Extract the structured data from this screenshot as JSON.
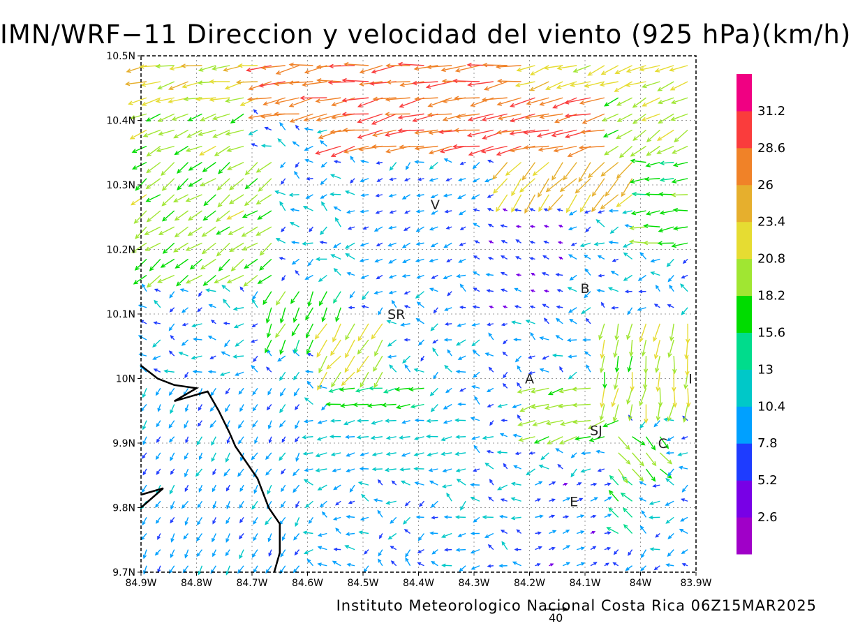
{
  "title": "IMN/WRF−11 Direccion y velocidad del viento (925 hPa)(km/h)",
  "footer": "Instituto Meteorologico Nacional Costa Rica 06Z15MAR2025",
  "reference_vector": {
    "label": "40"
  },
  "map": {
    "lon_range": [
      -84.9,
      -83.9
    ],
    "lat_range": [
      9.7,
      10.5
    ],
    "lon_ticks": [
      "84.9W",
      "84.8W",
      "84.7W",
      "84.6W",
      "84.5W",
      "84.4W",
      "84.3W",
      "84.2W",
      "84.1W",
      "84W",
      "83.9W"
    ],
    "lat_ticks": [
      "9.7N",
      "9.8N",
      "9.9N",
      "10N",
      "10.1N",
      "10.2N",
      "10.3N",
      "10.4N",
      "10.5N"
    ],
    "grid": "dotted",
    "places": [
      {
        "label": "V",
        "lon": -84.37,
        "lat": 10.27
      },
      {
        "label": "B",
        "lon": -84.1,
        "lat": 10.14
      },
      {
        "label": "SR",
        "lon": -84.44,
        "lat": 10.1
      },
      {
        "label": "A",
        "lon": -84.2,
        "lat": 10.0
      },
      {
        "label": "I",
        "lon": -83.91,
        "lat": 10.0
      },
      {
        "label": "SJ",
        "lon": -84.08,
        "lat": 9.92
      },
      {
        "label": "C",
        "lon": -83.96,
        "lat": 9.9
      },
      {
        "label": "E",
        "lon": -84.12,
        "lat": 9.81
      }
    ],
    "coastline": [
      [
        -84.9,
        10.02
      ],
      [
        -84.87,
        10.0
      ],
      [
        -84.84,
        9.99
      ],
      [
        -84.8,
        9.985
      ],
      [
        -84.84,
        9.965
      ],
      [
        -84.78,
        9.98
      ],
      [
        -84.76,
        9.95
      ],
      [
        -84.74,
        9.915
      ],
      [
        -84.73,
        9.895
      ],
      [
        -84.71,
        9.87
      ],
      [
        -84.69,
        9.845
      ],
      [
        -84.67,
        9.8
      ],
      [
        -84.65,
        9.775
      ],
      [
        -84.65,
        9.73
      ],
      [
        -84.66,
        9.7
      ]
    ],
    "coastline2": [
      [
        -84.9,
        9.82
      ],
      [
        -84.86,
        9.83
      ],
      [
        -84.9,
        9.8
      ]
    ]
  },
  "colorbar": {
    "labels": [
      "2.6",
      "5.2",
      "7.8",
      "10.4",
      "13",
      "15.6",
      "18.2",
      "20.8",
      "23.4",
      "26",
      "28.6",
      "31.2"
    ],
    "colors": [
      "#a000c8",
      "#7800e6",
      "#1e3cff",
      "#00a0ff",
      "#00c8c8",
      "#00dc8c",
      "#00dc00",
      "#a0e632",
      "#e6dc32",
      "#e6af2d",
      "#f08228",
      "#fa3c3c",
      "#f00082"
    ]
  },
  "wind_regions": [
    {
      "lon": [
        -84.9,
        -84.67
      ],
      "lat": [
        10.42,
        10.5
      ],
      "spd": 22,
      "dir": 192
    },
    {
      "lon": [
        -84.67,
        -84.2
      ],
      "lat": [
        10.4,
        10.5
      ],
      "spd": 28,
      "dir": 188
    },
    {
      "lon": [
        -84.2,
        -83.9
      ],
      "lat": [
        10.44,
        10.5
      ],
      "spd": 22,
      "dir": 200
    },
    {
      "lon": [
        -84.55,
        -84.05
      ],
      "lat": [
        10.36,
        10.44
      ],
      "spd": 28,
      "dir": 192
    },
    {
      "lon": [
        -84.05,
        -83.9
      ],
      "lat": [
        10.36,
        10.44
      ],
      "spd": 20,
      "dir": 210
    },
    {
      "lon": [
        -84.25,
        -84.0
      ],
      "lat": [
        10.28,
        10.36
      ],
      "spd": 24,
      "dir": 230
    },
    {
      "lon": [
        -84.0,
        -83.9
      ],
      "lat": [
        10.2,
        10.34
      ],
      "spd": 17,
      "dir": 185
    },
    {
      "lon": [
        -84.9,
        -84.65
      ],
      "lat": [
        10.15,
        10.35
      ],
      "spd": 19,
      "dir": 215
    },
    {
      "lon": [
        -84.9,
        -84.7
      ],
      "lat": [
        10.36,
        10.42
      ],
      "spd": 19,
      "dir": 205
    },
    {
      "lon": [
        -84.68,
        -84.52
      ],
      "lat": [
        10.05,
        10.15
      ],
      "spd": 17,
      "dir": 245
    },
    {
      "lon": [
        -84.58,
        -84.45
      ],
      "lat": [
        10.0,
        10.1
      ],
      "spd": 21,
      "dir": 235
    },
    {
      "lon": [
        -84.55,
        -84.38
      ],
      "lat": [
        9.94,
        10.0
      ],
      "spd": 15,
      "dir": 190
    },
    {
      "lon": [
        -84.2,
        -84.03
      ],
      "lat": [
        9.9,
        9.99
      ],
      "spd": 19,
      "dir": 195
    },
    {
      "lon": [
        -84.08,
        -83.9
      ],
      "lat": [
        9.95,
        10.1
      ],
      "spd": 20,
      "dir": 262
    },
    {
      "lon": [
        -84.06,
        -83.96
      ],
      "lat": [
        9.85,
        9.92
      ],
      "spd": 18,
      "dir": 315
    },
    {
      "lon": [
        -84.12,
        -84.0
      ],
      "lat": [
        9.76,
        9.86
      ],
      "spd": 14,
      "dir": 140
    },
    {
      "lon": [
        -84.9,
        -84.6
      ],
      "lat": [
        9.7,
        10.0
      ],
      "spd": 9,
      "dir": 240
    },
    {
      "lon": [
        -84.6,
        -84.3
      ],
      "lat": [
        9.85,
        9.95
      ],
      "spd": 11,
      "dir": 190
    },
    {
      "lon": [
        -84.5,
        -84.25
      ],
      "lat": [
        10.15,
        10.32
      ],
      "spd": 8,
      "dir": 200
    },
    {
      "lon": [
        -84.3,
        -84.12
      ],
      "lat": [
        10.1,
        10.28
      ],
      "spd": 6,
      "dir": 160
    },
    {
      "lon": [
        -84.2,
        -84.05
      ],
      "lat": [
        9.7,
        9.85
      ],
      "spd": 7,
      "dir": 20
    }
  ]
}
